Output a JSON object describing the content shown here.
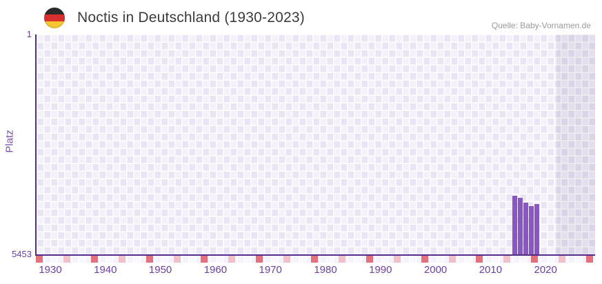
{
  "header": {
    "title": "Noctis in Deutschland (1930-2023)",
    "source": "Quelle: Baby-Vornamen.de",
    "flag_icon": "germany-flag"
  },
  "y_axis": {
    "title": "Platz",
    "top_tick": "1",
    "bottom_tick": "5453"
  },
  "chart_data": {
    "type": "bar",
    "title": "Noctis in Deutschland (1930-2023)",
    "source": "Quelle: Baby-Vornamen.de",
    "ylabel": "Platz",
    "y_inverted": true,
    "ymin": 1,
    "ymax": 5453,
    "x_range": [
      1930,
      2023
    ],
    "x_ticks": [
      1930,
      1940,
      1950,
      1960,
      1970,
      1980,
      1990,
      2000,
      2010,
      2020
    ],
    "grid": "checkerboard",
    "legend": "none",
    "series": [
      {
        "name": "Platz",
        "color": "#8a55c4",
        "points": [
          {
            "year": 2015,
            "rank": 3990
          },
          {
            "year": 2016,
            "rank": 4040
          },
          {
            "year": 2017,
            "rank": 4160
          },
          {
            "year": 2018,
            "rank": 4245
          },
          {
            "year": 2019,
            "rank": 4195
          }
        ]
      }
    ],
    "baseline_marks": {
      "start_year": 1928,
      "end_year": 2028,
      "interval_years": 5,
      "dark_color": "#e4707c",
      "light_color": "#f2c0c9"
    },
    "shade_from_year": 2022,
    "colors": {
      "axis_line": "#512b87",
      "tick_text": "#6b3fa6",
      "cell_light": "#f4f1fb",
      "cell_dark": "#eae5f5"
    }
  }
}
